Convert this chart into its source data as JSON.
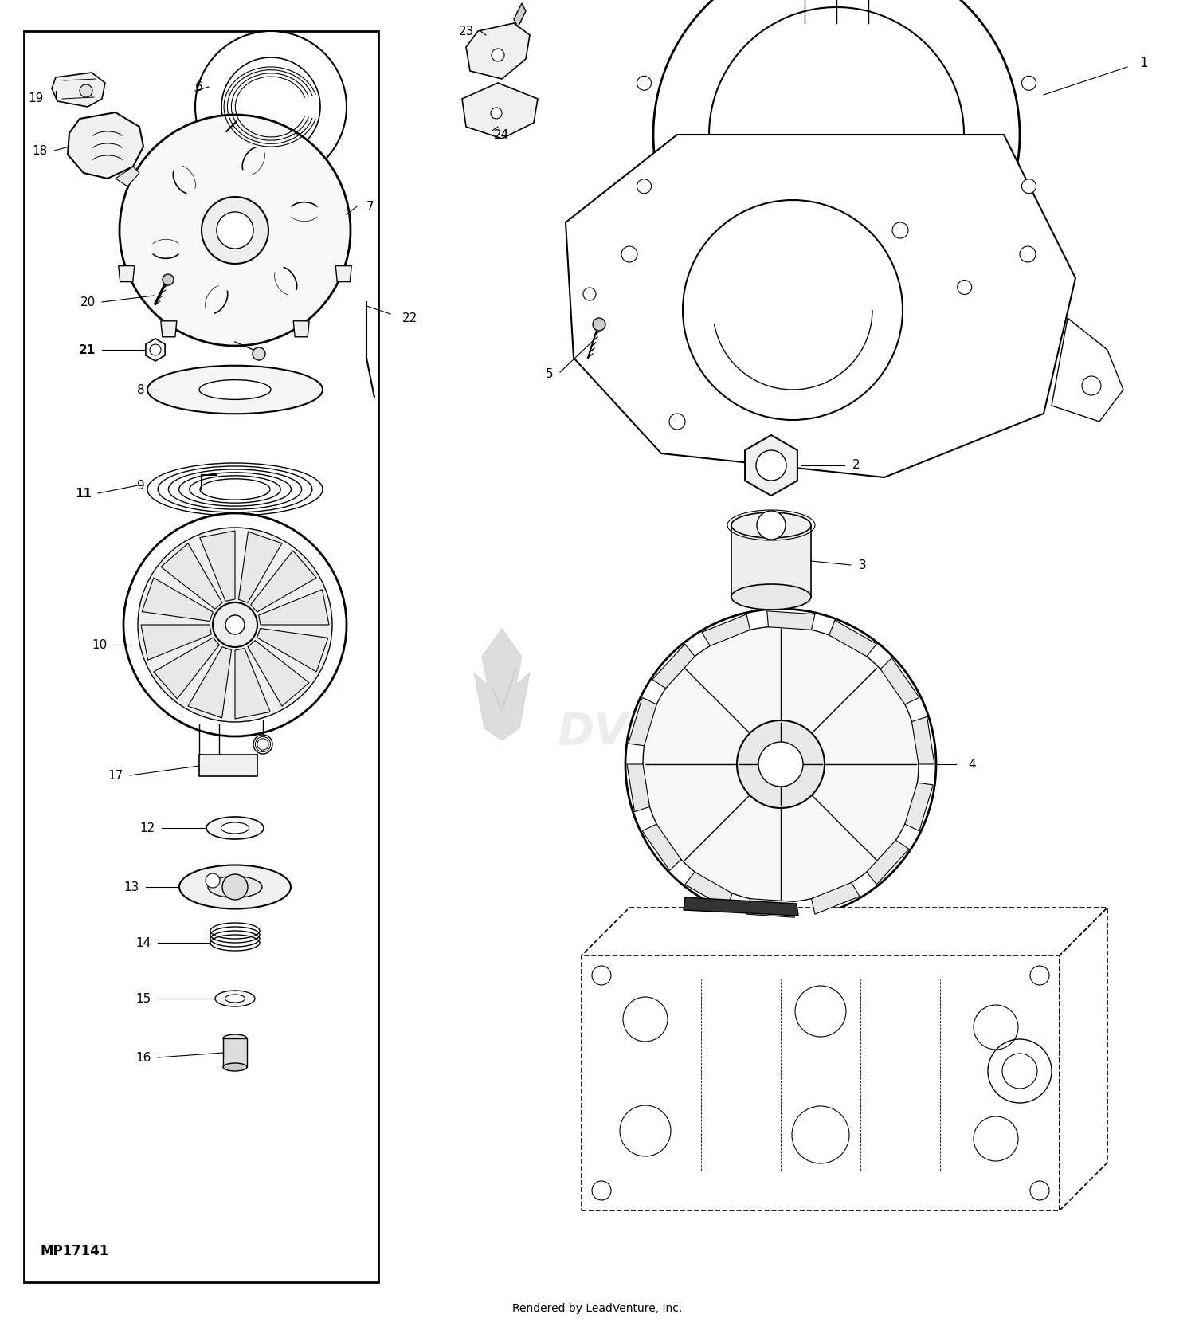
{
  "bg_color": "#ffffff",
  "line_color": "#000000",
  "footer_text": "Rendered by LeadVenture, Inc.",
  "part_id_text": "MP17141",
  "fig_width": 15.0,
  "fig_height": 16.79,
  "dpi": 100
}
